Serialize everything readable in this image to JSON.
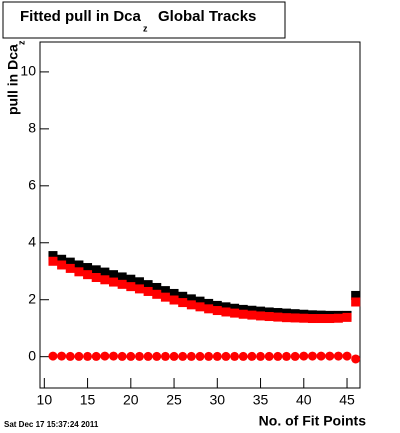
{
  "chart_data": {
    "type": "scatter",
    "title": "Fitted pull in Dca",
    "title_subscript": "z",
    "title_suffix": "Global Tracks",
    "y_label": "pull in Dca",
    "y_label_subscript": "z",
    "x_label": "No. of Fit Points",
    "footer": "Sat Dec 17 15:37:24 2011",
    "x": [
      11,
      12,
      13,
      14,
      15,
      16,
      17,
      18,
      19,
      20,
      21,
      22,
      23,
      24,
      25,
      26,
      27,
      28,
      29,
      30,
      31,
      32,
      33,
      34,
      35,
      36,
      37,
      38,
      39,
      40,
      41,
      42,
      43,
      44,
      45,
      46
    ],
    "series": [
      {
        "color": "#000000",
        "marker": "square",
        "values": [
          3.55,
          3.42,
          3.32,
          3.22,
          3.13,
          3.05,
          2.97,
          2.88,
          2.8,
          2.72,
          2.63,
          2.53,
          2.43,
          2.32,
          2.22,
          2.12,
          2.03,
          1.95,
          1.87,
          1.8,
          1.75,
          1.7,
          1.66,
          1.63,
          1.6,
          1.57,
          1.55,
          1.53,
          1.51,
          1.49,
          1.47,
          1.46,
          1.45,
          1.45,
          1.45,
          2.15
        ]
      },
      {
        "color": "#ff0000",
        "marker": "square",
        "values": [
          3.35,
          3.22,
          3.1,
          2.98,
          2.88,
          2.78,
          2.7,
          2.62,
          2.54,
          2.46,
          2.38,
          2.29,
          2.19,
          2.09,
          1.99,
          1.9,
          1.82,
          1.75,
          1.68,
          1.62,
          1.57,
          1.53,
          1.49,
          1.46,
          1.43,
          1.41,
          1.39,
          1.37,
          1.36,
          1.35,
          1.34,
          1.34,
          1.34,
          1.35,
          1.38,
          1.92
        ]
      },
      {
        "color": "#ff0000",
        "marker": "circle",
        "values": [
          0.02,
          0.02,
          0.01,
          0.01,
          0.01,
          0.01,
          0.02,
          0.02,
          0.01,
          0.01,
          0.01,
          0.01,
          0.01,
          0.01,
          0.01,
          0.01,
          0.01,
          0.01,
          0.01,
          0.01,
          0.01,
          0.01,
          0.01,
          0.01,
          0.01,
          0.01,
          0.01,
          0.01,
          0.01,
          0.02,
          0.02,
          0.02,
          0.02,
          0.02,
          0.02,
          -0.08
        ]
      }
    ],
    "xlim": [
      9.5,
      46.5
    ],
    "xticks": [
      10,
      15,
      20,
      25,
      30,
      35,
      40,
      45
    ],
    "ylim": [
      -1.1,
      11.05
    ],
    "yticks": [
      0,
      2,
      4,
      6,
      8,
      10
    ]
  }
}
